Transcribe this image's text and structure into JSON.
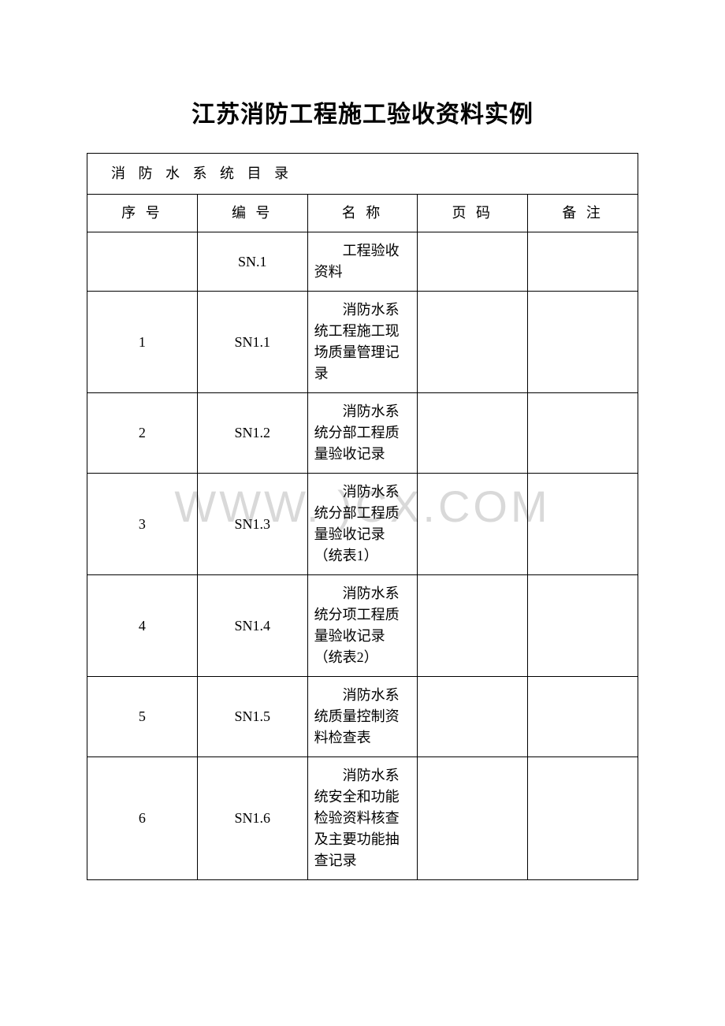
{
  "title": "江苏消防工程施工验收资料实例",
  "watermark": "WWW.         )CX.COM",
  "table": {
    "section_title": "消 防 水 系 统 目 录",
    "headers": {
      "seq": "序 号",
      "code": "编 号",
      "name": "名 称",
      "page": "页 码",
      "remark": "备 注"
    },
    "rows": [
      {
        "seq": "",
        "code": "SN.1",
        "name": "工程验收资料",
        "page": "",
        "remark": ""
      },
      {
        "seq": "1",
        "code": "SN1.1",
        "name": "消防水系统工程施工现场质量管理记录",
        "page": "",
        "remark": ""
      },
      {
        "seq": "2",
        "code": "SN1.2",
        "name": "消防水系统分部工程质量验收记录",
        "page": "",
        "remark": ""
      },
      {
        "seq": "3",
        "code": "SN1.3",
        "name": "消防水系统分部工程质量验收记录（统表1）",
        "page": "",
        "remark": ""
      },
      {
        "seq": "4",
        "code": "SN1.4",
        "name": "消防水系统分项工程质量验收记录（统表2）",
        "page": "",
        "remark": ""
      },
      {
        "seq": "5",
        "code": "SN1.5",
        "name": "消防水系统质量控制资料检查表",
        "page": "",
        "remark": ""
      },
      {
        "seq": "6",
        "code": "SN1.6",
        "name": "消防水系统安全和功能检验资料核查及主要功能抽查记录",
        "page": "",
        "remark": ""
      }
    ]
  },
  "colors": {
    "background": "#ffffff",
    "text": "#000000",
    "border": "#000000",
    "watermark": "#d9d9d9"
  }
}
